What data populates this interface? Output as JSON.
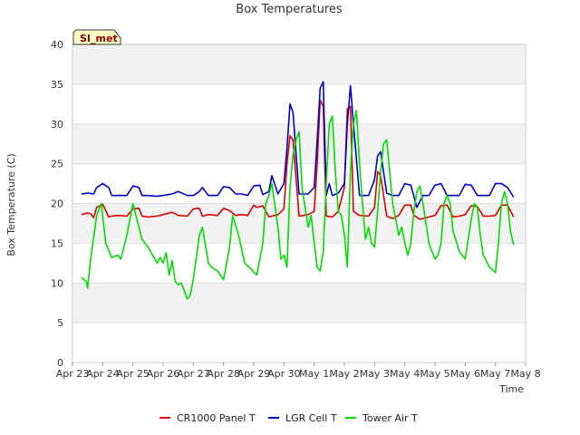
{
  "chart_data": {
    "type": "line",
    "title": "Box Temperatures",
    "xlabel": "Time",
    "ylabel": "Box Temperature (C)",
    "ylim": [
      0,
      40
    ],
    "yticks": [
      0,
      5,
      10,
      15,
      20,
      25,
      30,
      35,
      40
    ],
    "xlim": [
      0,
      15
    ],
    "xtick_labels": [
      "Apr 23",
      "Apr 24",
      "Apr 25",
      "Apr 26",
      "Apr 27",
      "Apr 28",
      "Apr 29",
      "Apr 30",
      "May 1",
      "May 2",
      "May 3",
      "May 4",
      "May 5",
      "May 6",
      "May 7",
      "May 8"
    ],
    "grid": true,
    "site_badge": "SI_met",
    "series": [
      {
        "name": "CR1000 Panel T",
        "color": "#dd0000",
        "x": [
          0.3,
          0.5,
          0.6,
          0.7,
          0.8,
          1.0,
          1.2,
          1.3,
          1.5,
          1.8,
          2.0,
          2.2,
          2.3,
          2.5,
          2.8,
          3.0,
          3.3,
          3.5,
          3.8,
          4.0,
          4.2,
          4.3,
          4.5,
          4.8,
          5.0,
          5.2,
          5.4,
          5.6,
          5.8,
          6.0,
          6.1,
          6.3,
          6.5,
          6.8,
          7.0,
          7.1,
          7.2,
          7.3,
          7.5,
          7.8,
          8.0,
          8.1,
          8.2,
          8.3,
          8.4,
          8.6,
          8.8,
          9.0,
          9.1,
          9.2,
          9.3,
          9.5,
          9.8,
          10.0,
          10.1,
          10.2,
          10.4,
          10.6,
          10.8,
          11.0,
          11.2,
          11.3,
          11.5,
          11.8,
          12.0,
          12.2,
          12.4,
          12.6,
          12.8,
          13.0,
          13.2,
          13.4,
          13.6,
          13.8,
          14.0,
          14.2,
          14.4,
          14.6
        ],
        "values": [
          18.6,
          18.8,
          18.7,
          18.2,
          19.5,
          19.9,
          18.3,
          18.4,
          18.5,
          18.4,
          19.3,
          19.4,
          18.4,
          18.3,
          18.4,
          18.6,
          18.9,
          18.5,
          18.4,
          19.3,
          19.4,
          18.4,
          18.6,
          18.5,
          19.4,
          19.1,
          18.5,
          18.6,
          18.5,
          19.8,
          19.5,
          19.7,
          18.3,
          18.6,
          19.3,
          25.0,
          28.5,
          28.0,
          18.4,
          18.6,
          19.0,
          25.0,
          33.0,
          32.2,
          18.4,
          18.3,
          19.0,
          22.0,
          31.9,
          32.2,
          19.0,
          18.5,
          18.4,
          19.5,
          24.0,
          23.5,
          18.4,
          18.1,
          18.5,
          19.8,
          19.8,
          18.5,
          18.0,
          18.3,
          18.5,
          19.7,
          19.8,
          18.3,
          18.4,
          18.6,
          19.7,
          19.6,
          18.4,
          18.4,
          18.5,
          19.8,
          19.8,
          18.3
        ]
      },
      {
        "name": "LGR Cell T",
        "color": "#0000cc",
        "x": [
          0.3,
          0.5,
          0.7,
          0.8,
          1.0,
          1.2,
          1.3,
          1.5,
          1.8,
          2.0,
          2.2,
          2.3,
          2.5,
          2.8,
          3.0,
          3.3,
          3.5,
          3.8,
          4.0,
          4.2,
          4.3,
          4.5,
          4.8,
          5.0,
          5.2,
          5.4,
          5.6,
          5.8,
          6.0,
          6.2,
          6.3,
          6.5,
          6.6,
          6.8,
          7.0,
          7.1,
          7.2,
          7.3,
          7.5,
          7.8,
          8.0,
          8.1,
          8.2,
          8.3,
          8.4,
          8.5,
          8.6,
          8.8,
          9.0,
          9.1,
          9.2,
          9.3,
          9.5,
          9.8,
          10.0,
          10.1,
          10.2,
          10.4,
          10.6,
          10.8,
          11.0,
          11.2,
          11.4,
          11.6,
          11.8,
          12.0,
          12.2,
          12.4,
          12.6,
          12.8,
          13.0,
          13.2,
          13.4,
          13.6,
          13.8,
          14.0,
          14.2,
          14.4,
          14.6
        ],
        "values": [
          21.2,
          21.3,
          21.2,
          22.0,
          22.5,
          22.0,
          21.0,
          21.0,
          21.0,
          22.2,
          22.0,
          21.0,
          21.0,
          20.9,
          21.0,
          21.2,
          21.5,
          21.0,
          21.0,
          21.5,
          22.0,
          21.0,
          21.0,
          22.1,
          22.0,
          21.2,
          21.2,
          21.0,
          22.2,
          22.3,
          21.1,
          21.5,
          23.5,
          21.2,
          22.5,
          27.0,
          32.5,
          31.5,
          21.2,
          21.2,
          22.0,
          28.0,
          34.5,
          35.3,
          21.0,
          22.5,
          21.0,
          21.3,
          22.5,
          30.0,
          34.8,
          30.0,
          21.0,
          21.0,
          23.0,
          26.0,
          26.5,
          21.3,
          21.0,
          21.0,
          22.5,
          22.3,
          19.5,
          21.0,
          21.0,
          22.3,
          22.5,
          21.0,
          21.0,
          21.0,
          22.4,
          22.3,
          21.0,
          21.0,
          21.0,
          22.5,
          22.5,
          22.0,
          20.8
        ]
      },
      {
        "name": "Tower Air T",
        "color": "#00dd00",
        "x": [
          0.3,
          0.45,
          0.5,
          0.6,
          0.8,
          0.95,
          1.1,
          1.3,
          1.5,
          1.6,
          1.8,
          2.0,
          2.1,
          2.3,
          2.5,
          2.7,
          2.8,
          2.9,
          3.0,
          3.1,
          3.2,
          3.3,
          3.4,
          3.5,
          3.6,
          3.7,
          3.8,
          3.9,
          4.0,
          4.2,
          4.3,
          4.5,
          4.6,
          4.8,
          5.0,
          5.2,
          5.3,
          5.5,
          5.7,
          5.9,
          6.1,
          6.3,
          6.4,
          6.5,
          6.6,
          6.8,
          6.9,
          7.0,
          7.1,
          7.2,
          7.3,
          7.4,
          7.5,
          7.6,
          7.8,
          7.9,
          8.0,
          8.1,
          8.2,
          8.3,
          8.4,
          8.5,
          8.6,
          8.7,
          8.8,
          8.9,
          9.0,
          9.1,
          9.2,
          9.3,
          9.4,
          9.5,
          9.6,
          9.7,
          9.8,
          9.9,
          10.0,
          10.1,
          10.2,
          10.3,
          10.4,
          10.5,
          10.6,
          10.8,
          10.9,
          11.0,
          11.1,
          11.2,
          11.3,
          11.4,
          11.5,
          11.6,
          11.8,
          12.0,
          12.1,
          12.2,
          12.3,
          12.4,
          12.5,
          12.6,
          12.8,
          13.0,
          13.2,
          13.3,
          13.4,
          13.5,
          13.6,
          13.8,
          14.0,
          14.1,
          14.2,
          14.3,
          14.4,
          14.5,
          14.6
        ],
        "values": [
          10.7,
          10.2,
          9.4,
          13.0,
          18.5,
          20.0,
          15.0,
          13.2,
          13.5,
          13.0,
          16.0,
          20.0,
          18.5,
          15.5,
          14.5,
          13.2,
          12.5,
          13.2,
          12.5,
          13.8,
          11.0,
          12.8,
          10.2,
          9.8,
          10.0,
          9.0,
          8.0,
          8.5,
          10.5,
          16.0,
          17.0,
          12.5,
          12.0,
          11.5,
          10.4,
          14.5,
          18.5,
          16.0,
          12.5,
          11.8,
          11.0,
          15.0,
          20.0,
          21.0,
          22.5,
          17.0,
          13.0,
          13.5,
          12.0,
          22.0,
          26.0,
          28.0,
          29.0,
          22.0,
          17.0,
          18.5,
          15.0,
          12.0,
          11.5,
          14.0,
          22.5,
          30.0,
          31.0,
          24.0,
          19.0,
          18.5,
          16.0,
          12.0,
          24.0,
          30.0,
          31.7,
          25.0,
          20.0,
          15.5,
          17.0,
          15.0,
          14.5,
          19.0,
          24.0,
          27.5,
          28.0,
          24.0,
          20.0,
          16.0,
          17.0,
          15.0,
          13.5,
          15.0,
          19.0,
          21.5,
          22.2,
          20.0,
          15.0,
          13.0,
          13.5,
          15.0,
          20.0,
          21.0,
          20.0,
          16.5,
          14.0,
          13.0,
          18.0,
          20.0,
          19.5,
          16.0,
          13.5,
          12.0,
          11.3,
          15.0,
          20.0,
          21.5,
          20.0,
          16.5,
          14.8
        ]
      }
    ]
  }
}
